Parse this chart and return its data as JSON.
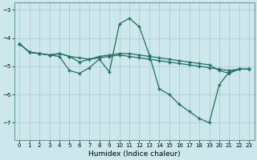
{
  "xlabel": "Humidex (Indice chaleur)",
  "xlim": [
    -0.5,
    23.5
  ],
  "ylim": [
    -7.6,
    -2.75
  ],
  "yticks": [
    -7,
    -6,
    -5,
    -4,
    -3
  ],
  "xticks": [
    0,
    1,
    2,
    3,
    4,
    5,
    6,
    7,
    8,
    9,
    10,
    11,
    12,
    13,
    14,
    15,
    16,
    17,
    18,
    19,
    20,
    21,
    22,
    23
  ],
  "bg_color": "#cce8ed",
  "grid_color": "#aac8d0",
  "line_color": "#1e6e64",
  "line1_x": [
    0,
    1,
    2,
    3,
    4,
    5,
    6,
    7,
    8,
    9,
    10,
    11,
    12,
    13,
    14,
    15,
    16,
    17,
    18,
    19,
    20,
    21,
    22,
    23
  ],
  "line1_y": [
    -4.2,
    -4.5,
    -4.55,
    -4.6,
    -4.55,
    -4.65,
    -4.7,
    -4.75,
    -4.7,
    -4.65,
    -4.6,
    -4.65,
    -4.7,
    -4.75,
    -4.8,
    -4.85,
    -4.9,
    -4.95,
    -5.0,
    -5.05,
    -5.1,
    -5.15,
    -5.1,
    -5.1
  ],
  "line2_x": [
    0,
    1,
    2,
    3,
    4,
    5,
    6,
    7,
    8,
    9,
    10,
    11,
    12,
    13,
    14,
    15,
    16,
    17,
    18,
    19,
    20,
    21,
    22,
    23
  ],
  "line2_y": [
    -4.2,
    -4.5,
    -4.55,
    -4.6,
    -4.65,
    -5.15,
    -5.25,
    -5.05,
    -4.75,
    -5.2,
    -3.5,
    -3.3,
    -3.6,
    -4.6,
    -5.8,
    -6.0,
    -6.35,
    -6.6,
    -6.85,
    -7.0,
    -5.65,
    -5.2,
    -5.1,
    -5.1
  ],
  "line3_x": [
    0,
    1,
    2,
    3,
    4,
    5,
    6,
    7,
    8,
    9,
    10,
    11,
    12,
    13,
    14,
    15,
    16,
    17,
    18,
    19,
    20,
    21,
    22,
    23
  ],
  "line3_y": [
    -4.2,
    -4.5,
    -4.55,
    -4.6,
    -4.55,
    -4.65,
    -4.85,
    -4.75,
    -4.65,
    -4.6,
    -4.55,
    -4.55,
    -4.6,
    -4.65,
    -4.7,
    -4.75,
    -4.8,
    -4.85,
    -4.9,
    -4.95,
    -5.15,
    -5.25,
    -5.1,
    -5.1
  ]
}
